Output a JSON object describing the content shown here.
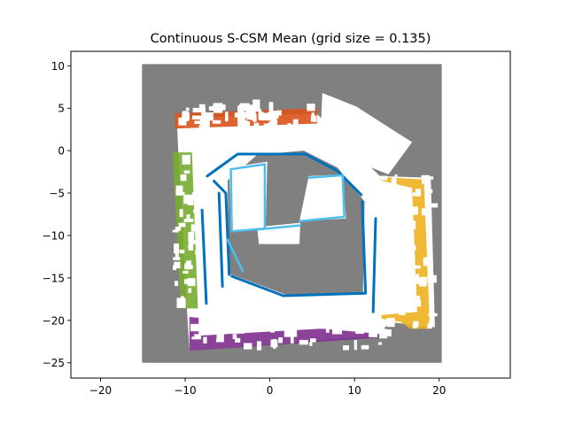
{
  "chart_data": {
    "type": "heatmap",
    "title": "Continuous S-CSM Mean (grid size = 0.135)",
    "xlabel": "",
    "ylabel": "",
    "xlim": [
      -23.5,
      28.4
    ],
    "ylim": [
      -26.8,
      11.7
    ],
    "x_ticks": [
      -20,
      -10,
      0,
      10,
      20
    ],
    "y_ticks": [
      10,
      5,
      0,
      -5,
      -10,
      -15,
      -20,
      -25
    ],
    "x_tick_labels": [
      "−20",
      "−10",
      "0",
      "10",
      "20"
    ],
    "y_tick_labels": [
      "10",
      "5",
      "0",
      "−5",
      "−10",
      "−15",
      "−20",
      "−25"
    ],
    "grid": false,
    "legend": "none",
    "grid_extent": {
      "x": [
        -15.1,
        20.3
      ],
      "y": [
        -25.0,
        10.2
      ]
    },
    "colors": {
      "unknown": "#808080",
      "free": "#ffffff",
      "wall_outer_north": "#d95319",
      "wall_outer_west": "#77ac30",
      "wall_outer_east": "#edb120",
      "wall_outer_south": "#7e2f8e",
      "wall_inner": "#0072bd",
      "wall_inner_light": "#4dbeee"
    },
    "regions": {
      "outer_corridor": [
        [
          -11.0,
          3.8
        ],
        [
          5.5,
          4.4
        ],
        [
          13.0,
          -3.0
        ],
        [
          19.0,
          -3.2
        ],
        [
          19.5,
          -20.8
        ],
        [
          14.0,
          -20.2
        ],
        [
          13.0,
          -21.8
        ],
        [
          -9.5,
          -23.6
        ],
        [
          -9.8,
          -18.5
        ],
        [
          -10.8,
          -0.5
        ]
      ],
      "north_room": [
        [
          6.2,
          6.8
        ],
        [
          10.2,
          5.2
        ],
        [
          16.8,
          1.0
        ],
        [
          14.0,
          -2.8
        ],
        [
          12.0,
          -2.0
        ],
        [
          6.0,
          2.0
        ]
      ],
      "inner_void": [
        [
          -5.0,
          -3.5
        ],
        [
          -4.8,
          -14.5
        ],
        [
          2.0,
          -17.0
        ],
        [
          11.0,
          -16.8
        ],
        [
          11.2,
          -6.0
        ],
        [
          8.0,
          -2.0
        ],
        [
          4.0,
          0.0
        ],
        [
          -1.5,
          -0.5
        ]
      ],
      "inner_rooms": [
        [
          [
            -4.8,
            -2.0
          ],
          [
            -0.3,
            -1.3
          ],
          [
            -0.5,
            -9.0
          ],
          [
            -4.6,
            -9.5
          ]
        ],
        [
          [
            4.6,
            -3.0
          ],
          [
            8.6,
            -2.8
          ],
          [
            9.0,
            -8.0
          ],
          [
            3.5,
            -8.3
          ]
        ],
        [
          [
            -1.5,
            -9.0
          ],
          [
            3.6,
            -8.5
          ],
          [
            3.5,
            -11.0
          ],
          [
            -1.3,
            -11.0
          ]
        ]
      ],
      "north_wall": [
        [
          -11.2,
          4.4
        ],
        [
          5.6,
          5.0
        ],
        [
          5.6,
          3.2
        ],
        [
          -11.2,
          2.6
        ]
      ],
      "west_wall": [
        [
          -11.5,
          -0.2
        ],
        [
          -9.2,
          -0.2
        ],
        [
          -8.5,
          -18.6
        ],
        [
          -10.5,
          -18.6
        ]
      ],
      "east_wall": [
        [
          13.0,
          -3.1
        ],
        [
          18.2,
          -3.4
        ],
        [
          18.9,
          -21.0
        ],
        [
          16.6,
          -21.0
        ],
        [
          15.5,
          -20.2
        ],
        [
          13.2,
          -19.8
        ]
      ],
      "south_wall": [
        [
          -9.5,
          -19.6
        ],
        [
          13.2,
          -21.6
        ],
        [
          13.4,
          -22.0
        ],
        [
          -9.5,
          -23.6
        ]
      ],
      "inner_walls": [
        [
          [
            -7.4,
            -3.0
          ],
          [
            -3.8,
            -0.4
          ],
          [
            4.2,
            -0.4
          ],
          [
            8.0,
            -2.4
          ],
          [
            10.8,
            -5.2
          ]
        ],
        [
          [
            10.9,
            -6.0
          ],
          [
            11.3,
            -16.7
          ]
        ],
        [
          [
            11.3,
            -16.8
          ],
          [
            1.6,
            -17.1
          ],
          [
            -4.5,
            -14.8
          ]
        ],
        [
          [
            -4.8,
            -14.6
          ],
          [
            -5.2,
            -5.0
          ],
          [
            -6.6,
            -3.6
          ]
        ],
        [
          [
            -6.0,
            -5.0
          ],
          [
            -5.6,
            -16.0
          ]
        ],
        [
          [
            12.5,
            -8.0
          ],
          [
            12.2,
            -19.0
          ]
        ],
        [
          [
            -8.0,
            -7.0
          ],
          [
            -7.5,
            -18.0
          ]
        ]
      ],
      "inner_light_walls": [
        [
          [
            -4.6,
            -2.2
          ],
          [
            -0.6,
            -1.6
          ],
          [
            -0.6,
            -9.2
          ],
          [
            -4.5,
            -9.5
          ],
          [
            -4.6,
            -2.2
          ]
        ],
        [
          [
            4.6,
            -3.2
          ],
          [
            8.6,
            -2.9
          ],
          [
            8.8,
            -7.8
          ],
          [
            3.6,
            -8.3
          ]
        ],
        [
          [
            -1.5,
            -9.3
          ],
          [
            3.6,
            -8.8
          ]
        ],
        [
          [
            -5.0,
            -10.5
          ],
          [
            -3.2,
            -14.2
          ]
        ]
      ]
    }
  }
}
